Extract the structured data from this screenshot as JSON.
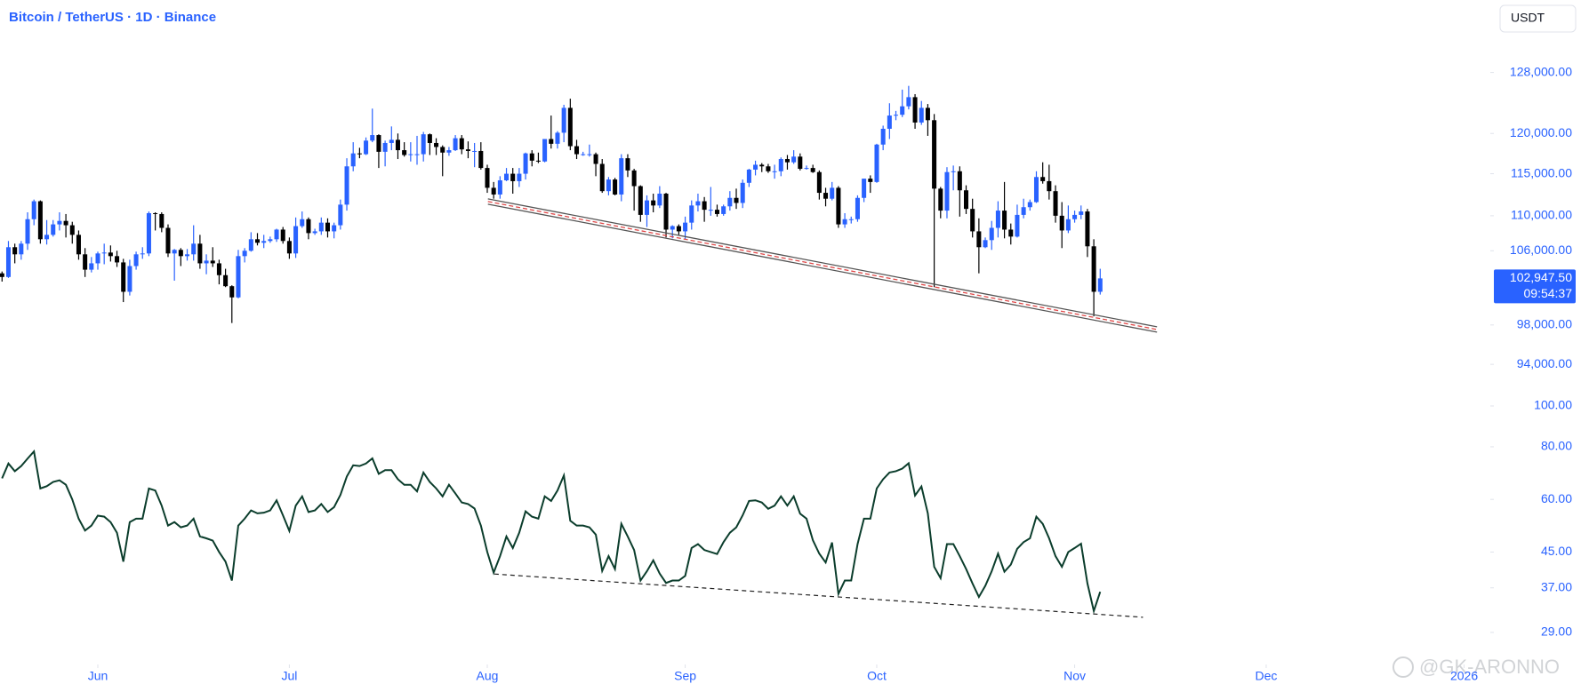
{
  "toolbar": {
    "currency": "USDT"
  },
  "watermark": "@GK-ARONNO",
  "chart_data": {
    "type": "candlestick",
    "title": "Bitcoin / TetherUS · 1D · Binance",
    "up_color": "#2962ff",
    "down_color": "#000000",
    "log": true,
    "ylim": [
      91400,
      138200
    ],
    "yticks": [
      {
        "value": 94000,
        "label": "94,000.00"
      },
      {
        "value": 98000,
        "label": "98,000.00"
      },
      {
        "value": 106000,
        "label": "106,000.00"
      },
      {
        "value": 110000,
        "label": "110,000.00"
      },
      {
        "value": 115000,
        "label": "115,000.00"
      },
      {
        "value": 120000,
        "label": "120,000.00"
      },
      {
        "value": 128000,
        "label": "128,000.00"
      }
    ],
    "xlim": [
      -0.32,
      233.1
    ],
    "xticks": [
      {
        "value": 15,
        "label": "Jun"
      },
      {
        "value": 45,
        "label": "Jul"
      },
      {
        "value": 76,
        "label": "Aug"
      },
      {
        "value": 107,
        "label": "Sep"
      },
      {
        "value": 137,
        "label": "Oct"
      },
      {
        "value": 168,
        "label": "Nov"
      },
      {
        "value": 198,
        "label": "Dec"
      },
      {
        "value": 229,
        "label": "2026"
      }
    ],
    "last_price_label": "102,947.50",
    "countdown": "09:54:37",
    "trendline": {
      "x": [
        76.1,
        180.9
      ],
      "y": [
        111670,
        97530
      ]
    },
    "candles": [
      [
        103500,
        103700,
        102600,
        103100
      ],
      [
        103100,
        107100,
        103000,
        106400
      ],
      [
        106400,
        106800,
        104600,
        105600
      ],
      [
        105600,
        107100,
        105000,
        106800
      ],
      [
        106800,
        110400,
        106100,
        109600
      ],
      [
        109600,
        111900,
        108900,
        111700
      ],
      [
        111700,
        111800,
        106800,
        107300
      ],
      [
        107300,
        109500,
        106700,
        107800
      ],
      [
        107800,
        109500,
        107600,
        109000
      ],
      [
        109000,
        110400,
        108300,
        109400
      ],
      [
        109400,
        110200,
        107500,
        108900
      ],
      [
        108900,
        109300,
        106800,
        107800
      ],
      [
        107800,
        108300,
        105000,
        105600
      ],
      [
        105600,
        106300,
        103100,
        103900
      ],
      [
        103900,
        105300,
        103600,
        104600
      ],
      [
        104600,
        105900,
        103900,
        105700
      ],
      [
        105700,
        106800,
        104500,
        105800
      ],
      [
        105800,
        106600,
        104800,
        105400
      ],
      [
        105400,
        106000,
        104200,
        104700
      ],
      [
        104700,
        105100,
        100400,
        101500
      ],
      [
        101500,
        105000,
        101100,
        104300
      ],
      [
        104300,
        105900,
        103900,
        105600
      ],
      [
        105600,
        106400,
        105100,
        105700
      ],
      [
        105700,
        110500,
        105400,
        110300
      ],
      [
        110300,
        110400,
        108300,
        110200
      ],
      [
        110200,
        110400,
        108100,
        108600
      ],
      [
        108600,
        109000,
        105300,
        105700
      ],
      [
        105700,
        106200,
        102700,
        106100
      ],
      [
        106100,
        106300,
        104300,
        105400
      ],
      [
        105400,
        106200,
        104900,
        105600
      ],
      [
        105600,
        108900,
        104900,
        106800
      ],
      [
        106800,
        107800,
        104000,
        104600
      ],
      [
        104600,
        105600,
        103400,
        104900
      ],
      [
        104900,
        106400,
        104200,
        104600
      ],
      [
        104600,
        105000,
        102300,
        103300
      ],
      [
        103300,
        104000,
        102000,
        102100
      ],
      [
        102100,
        102200,
        98200,
        100900
      ],
      [
        100900,
        106100,
        100800,
        105400
      ],
      [
        105400,
        106300,
        104700,
        106000
      ],
      [
        106000,
        108100,
        105900,
        107300
      ],
      [
        107300,
        108000,
        106600,
        106900
      ],
      [
        106900,
        107800,
        106300,
        107100
      ],
      [
        107100,
        107600,
        106900,
        107300
      ],
      [
        107300,
        108500,
        107000,
        108400
      ],
      [
        108400,
        108700,
        106800,
        107100
      ],
      [
        107100,
        107500,
        105100,
        105700
      ],
      [
        105700,
        109800,
        105200,
        108800
      ],
      [
        108800,
        110500,
        108600,
        109600
      ],
      [
        109600,
        109800,
        107300,
        108000
      ],
      [
        108000,
        108500,
        107800,
        108200
      ],
      [
        108200,
        109800,
        107800,
        109200
      ],
      [
        109200,
        109700,
        107500,
        108200
      ],
      [
        108200,
        109200,
        107400,
        108900
      ],
      [
        108900,
        111900,
        108400,
        111300
      ],
      [
        111300,
        116900,
        110600,
        115900
      ],
      [
        115900,
        118900,
        115300,
        117500
      ],
      [
        117500,
        118200,
        116900,
        117400
      ],
      [
        117400,
        119500,
        117300,
        119100
      ],
      [
        119100,
        123200,
        118900,
        119800
      ],
      [
        119800,
        119900,
        115700,
        117700
      ],
      [
        117700,
        119100,
        115900,
        118800
      ],
      [
        118800,
        120900,
        117900,
        119200
      ],
      [
        119200,
        120000,
        116800,
        117900
      ],
      [
        117900,
        118900,
        117100,
        117300
      ],
      [
        117300,
        118900,
        116500,
        117400
      ],
      [
        117400,
        119700,
        116100,
        117400
      ],
      [
        117400,
        120200,
        116500,
        119900
      ],
      [
        119900,
        120000,
        117300,
        118800
      ],
      [
        118800,
        119400,
        117300,
        118300
      ],
      [
        118300,
        118500,
        114700,
        117600
      ],
      [
        117600,
        118300,
        117200,
        117900
      ],
      [
        117900,
        119800,
        117800,
        119400
      ],
      [
        119400,
        119800,
        117400,
        118000
      ],
      [
        118000,
        119000,
        116900,
        117800
      ],
      [
        117800,
        118800,
        115800,
        117800
      ],
      [
        117800,
        118900,
        115500,
        115700
      ],
      [
        115700,
        116100,
        112700,
        113300
      ],
      [
        113300,
        114000,
        112000,
        112500
      ],
      [
        112500,
        114700,
        112000,
        114200
      ],
      [
        114200,
        115700,
        114100,
        115000
      ],
      [
        115000,
        115700,
        112600,
        114100
      ],
      [
        114100,
        115700,
        113400,
        115000
      ],
      [
        115000,
        117600,
        114300,
        117500
      ],
      [
        117500,
        117900,
        115900,
        116600
      ],
      [
        116600,
        117600,
        116300,
        116500
      ],
      [
        116500,
        119300,
        116400,
        119300
      ],
      [
        119300,
        122300,
        118100,
        118700
      ],
      [
        118700,
        120300,
        118100,
        120100
      ],
      [
        120100,
        123700,
        118900,
        123300
      ],
      [
        123300,
        124500,
        117900,
        118400
      ],
      [
        118400,
        119200,
        116800,
        117400
      ],
      [
        117400,
        117700,
        117200,
        117400
      ],
      [
        117400,
        118600,
        117100,
        117400
      ],
      [
        117400,
        117600,
        114700,
        116200
      ],
      [
        116200,
        116800,
        112700,
        112900
      ],
      [
        112900,
        114600,
        112400,
        114300
      ],
      [
        114300,
        114500,
        112400,
        112500
      ],
      [
        112500,
        117400,
        111700,
        116900
      ],
      [
        116900,
        117400,
        114600,
        115400
      ],
      [
        115400,
        115600,
        110600,
        113500
      ],
      [
        113500,
        113600,
        109300,
        110100
      ],
      [
        110100,
        112400,
        108700,
        111800
      ],
      [
        111800,
        112600,
        110400,
        111200
      ],
      [
        111200,
        113500,
        110900,
        112600
      ],
      [
        112600,
        112700,
        107500,
        108400
      ],
      [
        108400,
        108900,
        107400,
        108800
      ],
      [
        108800,
        109000,
        107800,
        108200
      ],
      [
        108200,
        109900,
        107300,
        109200
      ],
      [
        109200,
        111800,
        108400,
        111200
      ],
      [
        111200,
        112600,
        110500,
        111700
      ],
      [
        111700,
        112200,
        109300,
        110700
      ],
      [
        110700,
        113400,
        110000,
        110700
      ],
      [
        110700,
        111300,
        109900,
        110200
      ],
      [
        110200,
        111300,
        110000,
        111100
      ],
      [
        111100,
        112900,
        110600,
        112100
      ],
      [
        112100,
        113200,
        110800,
        111500
      ],
      [
        111500,
        114300,
        110900,
        113900
      ],
      [
        113900,
        115600,
        113400,
        115500
      ],
      [
        115500,
        116600,
        114800,
        116100
      ],
      [
        116100,
        116300,
        115200,
        115900
      ],
      [
        115900,
        116200,
        115100,
        115300
      ],
      [
        115300,
        116100,
        114400,
        115300
      ],
      [
        115300,
        117000,
        114700,
        116800
      ],
      [
        116800,
        117300,
        115500,
        116400
      ],
      [
        116400,
        117900,
        116200,
        117100
      ],
      [
        117100,
        117500,
        115400,
        115600
      ],
      [
        115600,
        116000,
        115500,
        115700
      ],
      [
        115700,
        116100,
        115100,
        115200
      ],
      [
        115200,
        115400,
        111900,
        112700
      ],
      [
        112700,
        113300,
        111100,
        112000
      ],
      [
        112000,
        114000,
        111800,
        113300
      ],
      [
        113300,
        113500,
        108600,
        109000
      ],
      [
        109000,
        110300,
        108600,
        109600
      ],
      [
        109600,
        109900,
        109100,
        109600
      ],
      [
        109600,
        112400,
        109300,
        112100
      ],
      [
        112100,
        114400,
        111600,
        114400
      ],
      [
        114400,
        114800,
        112700,
        114000
      ],
      [
        114000,
        118700,
        113900,
        118600
      ],
      [
        118600,
        121000,
        117900,
        120600
      ],
      [
        120600,
        123900,
        119300,
        122300
      ],
      [
        122300,
        122900,
        121700,
        122400
      ],
      [
        122400,
        125700,
        122100,
        123500
      ],
      [
        123500,
        126200,
        123100,
        124700
      ],
      [
        124700,
        125100,
        120600,
        121400
      ],
      [
        121400,
        124200,
        121100,
        123300
      ],
      [
        123300,
        123800,
        119700,
        121700
      ],
      [
        121700,
        122500,
        102000,
        113200
      ],
      [
        113200,
        113400,
        109700,
        110600
      ],
      [
        110600,
        115800,
        109700,
        115200
      ],
      [
        115200,
        116000,
        113000,
        115300
      ],
      [
        115300,
        115900,
        109900,
        113000
      ],
      [
        113000,
        113600,
        110200,
        110800
      ],
      [
        110800,
        112000,
        107500,
        108200
      ],
      [
        108200,
        109700,
        103500,
        106400
      ],
      [
        106400,
        107500,
        106300,
        107200
      ],
      [
        107200,
        109400,
        106100,
        108600
      ],
      [
        108600,
        111700,
        107500,
        110600
      ],
      [
        110600,
        114000,
        107400,
        108400
      ],
      [
        108400,
        109100,
        106700,
        107600
      ],
      [
        107600,
        111300,
        107500,
        110100
      ],
      [
        110100,
        112000,
        109700,
        111000
      ],
      [
        111000,
        111900,
        110600,
        111600
      ],
      [
        111600,
        115300,
        111500,
        114600
      ],
      [
        114600,
        116400,
        113800,
        114100
      ],
      [
        114100,
        116100,
        111900,
        112900
      ],
      [
        112900,
        113600,
        109200,
        110000
      ],
      [
        110000,
        111600,
        106300,
        108300
      ],
      [
        108300,
        111200,
        108000,
        109600
      ],
      [
        109600,
        110600,
        109200,
        110100
      ],
      [
        110100,
        111200,
        109600,
        110500
      ],
      [
        110500,
        110800,
        105300,
        106500
      ],
      [
        106500,
        107300,
        98900,
        101500
      ],
      [
        101500,
        104000,
        101200,
        102947.5
      ]
    ],
    "indicator": {
      "type": "line",
      "color": "#0b3d2c",
      "log": true,
      "ylim": [
        25.3,
        106
      ],
      "yticks": [
        {
          "value": 29,
          "label": "29.00"
        },
        {
          "value": 37,
          "label": "37.00"
        },
        {
          "value": 45,
          "label": "45.00"
        },
        {
          "value": 60,
          "label": "60.00"
        },
        {
          "value": 80,
          "label": "80.00"
        },
        {
          "value": 100,
          "label": "100.00"
        }
      ],
      "trendline": {
        "x": [
          77.1,
          178.7
        ],
        "y": [
          39.9,
          31.5
        ]
      },
      "values": [
        67.3,
        73,
        70,
        72,
        75,
        78,
        63.7,
        64.5,
        66,
        66.6,
        65,
        60,
        54,
        50.6,
        52,
        54.9,
        54.6,
        53,
        50,
        42.7,
        53,
        54,
        54,
        63.7,
        63,
        58,
        52,
        53,
        51.5,
        52,
        54,
        49,
        48.5,
        47.9,
        45,
        42.7,
        38.5,
        52,
        54,
        56.5,
        55.6,
        55.8,
        56.5,
        59.7,
        55,
        50.5,
        58,
        61,
        56,
        56.5,
        58.5,
        56,
        57.5,
        61.5,
        68,
        72.3,
        72,
        73,
        75.1,
        69,
        70.4,
        70.4,
        67,
        65,
        65,
        62.7,
        69.5,
        66,
        63.7,
        61,
        65,
        62,
        59,
        58.5,
        57.1,
        52,
        45,
        40.2,
        44,
        49,
        46,
        50,
        56.2,
        54.6,
        54,
        61,
        59.5,
        63,
        68.4,
        53.4,
        52,
        52,
        51.5,
        49.5,
        40.6,
        44,
        41,
        52.5,
        49,
        45.5,
        38.5,
        40.5,
        43,
        40,
        38,
        38.5,
        38.5,
        39.5,
        46,
        47,
        45.5,
        45,
        44.5,
        47.5,
        50,
        51.5,
        55,
        59.5,
        59.7,
        59,
        57,
        58,
        61,
        58,
        61,
        55.5,
        54,
        48,
        44.6,
        42.5,
        47.4,
        35.8,
        38.5,
        38.5,
        47,
        54,
        54,
        63.7,
        67,
        69.5,
        70,
        71,
        73.1,
        61.3,
        64.4,
        55.6,
        41.5,
        39,
        47,
        47,
        44,
        41,
        37.9,
        35.2,
        37.4,
        40.5,
        44.6,
        40.4,
        42,
        45.8,
        47.5,
        48.5,
        54.6,
        52.5,
        48.5,
        44,
        41.5,
        45,
        46,
        47.1,
        37.9,
        32.6,
        36.2
      ]
    }
  }
}
